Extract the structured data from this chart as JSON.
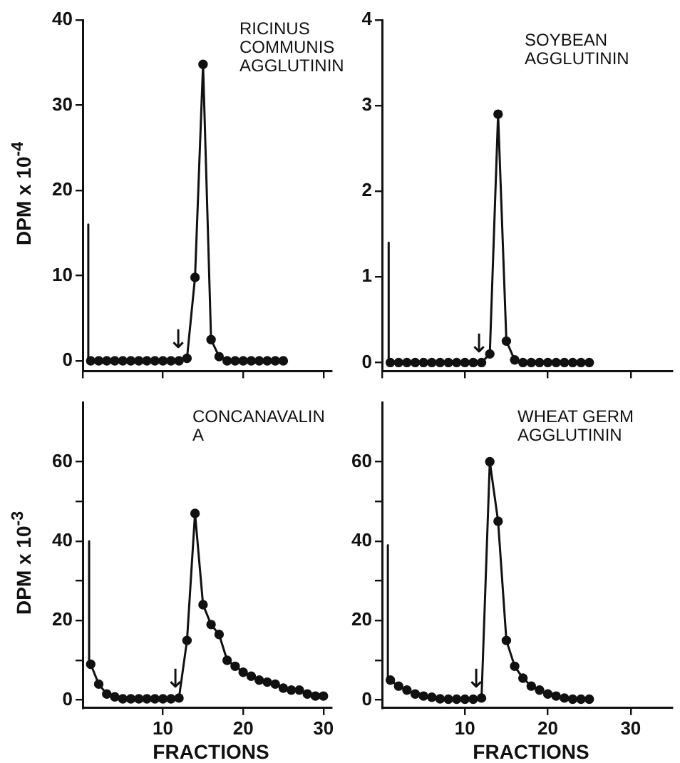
{
  "chart_data": [
    {
      "type": "line",
      "title": "RICINUS COMMUNIS AGGLUTININ",
      "ylabel": "DPM x 10$^{-4}$",
      "xlim": [
        0,
        31
      ],
      "xticks": [
        0,
        10,
        20,
        30
      ],
      "ylim": [
        -1.2,
        40
      ],
      "yticks": [
        0,
        10,
        20,
        30,
        40
      ],
      "tick_labels": "y",
      "grid": false,
      "legend": false,
      "marker": "circle",
      "series": [
        {
          "color": "#111111",
          "x": [
            1,
            2,
            3,
            4,
            5,
            6,
            7,
            8,
            9,
            10,
            11,
            12,
            13,
            14,
            15,
            16,
            17,
            18,
            19,
            20,
            21,
            22,
            23,
            24,
            25
          ],
          "values": [
            0,
            0,
            0,
            0,
            0,
            0,
            0,
            0,
            0,
            0,
            0,
            0,
            0.3,
            9.8,
            34.8,
            2.5,
            0.5,
            0,
            0,
            0,
            0,
            0,
            0,
            0,
            0
          ]
        },
        {
          "color": "#111111",
          "marker": "none",
          "x": [
            0.7,
            0.7
          ],
          "values": [
            16,
            0
          ]
        }
      ],
      "annotations": [
        "↓"
      ]
    },
    {
      "type": "line",
      "title": "SOYBEAN AGGLUTININ",
      "xlim": [
        0,
        35
      ],
      "xticks": [
        0,
        10,
        20,
        30
      ],
      "ylim": [
        -0.1,
        4
      ],
      "yticks": [
        0,
        1,
        2,
        3,
        4
      ],
      "tick_labels": "y",
      "grid": false,
      "legend": false,
      "marker": "circle",
      "series": [
        {
          "color": "#111111",
          "x": [
            1,
            2,
            3,
            4,
            5,
            6,
            7,
            8,
            9,
            10,
            11,
            12,
            13,
            14,
            15,
            16,
            17,
            18,
            19,
            20,
            21,
            22,
            23,
            24,
            25
          ],
          "values": [
            0,
            0,
            0,
            0,
            0,
            0,
            0,
            0,
            0,
            0,
            0,
            0,
            0.1,
            2.9,
            0.25,
            0.03,
            0,
            0,
            0,
            0,
            0,
            0,
            0,
            0,
            0
          ]
        },
        {
          "color": "#111111",
          "marker": "none",
          "x": [
            0.8,
            0.8
          ],
          "values": [
            1.4,
            0
          ]
        }
      ],
      "annotations": [
        "↓"
      ]
    },
    {
      "type": "line",
      "title": "CONCANAVALIN A",
      "xlabel": "FRACTIONS",
      "ylabel": "DPM x 10$^{-3}$",
      "xlim": [
        0,
        31
      ],
      "xticks": [
        10,
        20,
        30
      ],
      "ylim": [
        -2,
        75
      ],
      "yticks": [
        0,
        {
          "value": 10,
          "label": null
        },
        20,
        {
          "value": 30,
          "label": null
        },
        40,
        {
          "value": 50,
          "label": null
        },
        60
      ],
      "grid": false,
      "legend": false,
      "marker": "circle",
      "series": [
        {
          "color": "#111111",
          "x": [
            1,
            2,
            3,
            4,
            5,
            6,
            7,
            8,
            9,
            10,
            11,
            12,
            13,
            14,
            15,
            16,
            17,
            18,
            19,
            20,
            21,
            22,
            23,
            24,
            25,
            26,
            27,
            28,
            29,
            30
          ],
          "values": [
            9,
            4,
            1.5,
            0.8,
            0.3,
            0.3,
            0.3,
            0.3,
            0.3,
            0.3,
            0.3,
            0.5,
            15,
            47,
            24,
            19,
            16.5,
            10,
            8.5,
            7,
            6,
            5,
            4.5,
            4,
            3,
            2.5,
            2.5,
            1.5,
            1,
            1
          ]
        },
        {
          "color": "#111111",
          "marker": "none",
          "x": [
            0.8,
            0.8
          ],
          "values": [
            40,
            9
          ]
        }
      ],
      "annotations": [
        "↓"
      ]
    },
    {
      "type": "line",
      "title": "WHEAT GERM AGGLUTININ",
      "xlabel": "FRACTIONS",
      "xlim": [
        0,
        35
      ],
      "xticks": [
        10,
        20,
        30
      ],
      "ylim": [
        -2,
        75
      ],
      "yticks": [
        0,
        {
          "value": 10,
          "label": null
        },
        20,
        {
          "value": 30,
          "label": null
        },
        40,
        {
          "value": 50,
          "label": null
        },
        60
      ],
      "grid": false,
      "legend": false,
      "marker": "circle",
      "series": [
        {
          "color": "#111111",
          "x": [
            1,
            2,
            3,
            4,
            5,
            6,
            7,
            8,
            9,
            10,
            11,
            12,
            13,
            14,
            15,
            16,
            17,
            18,
            19,
            20,
            21,
            22,
            23,
            24,
            25
          ],
          "values": [
            5,
            3.5,
            2.5,
            1.5,
            1,
            0.7,
            0.3,
            0.2,
            0.2,
            0.2,
            0.2,
            0.5,
            60,
            45,
            15,
            8.5,
            5.5,
            3.5,
            2.5,
            1.5,
            1,
            0.5,
            0.2,
            0.2,
            0.2
          ]
        },
        {
          "color": "#111111",
          "marker": "none",
          "x": [
            0.7,
            0.7
          ],
          "values": [
            39,
            5
          ]
        }
      ],
      "annotations": [
        "↓"
      ]
    }
  ]
}
